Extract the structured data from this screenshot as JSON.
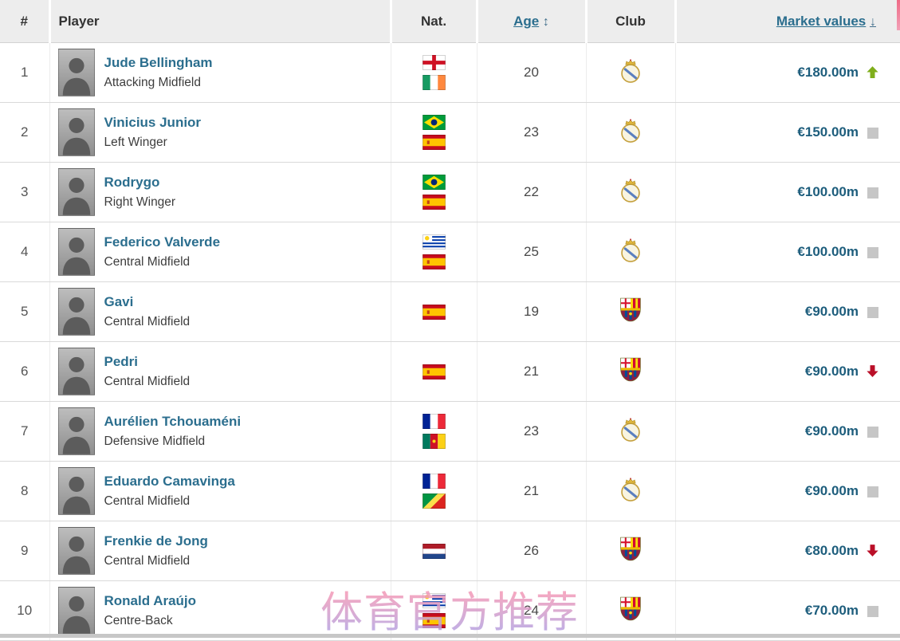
{
  "header": {
    "rank": "#",
    "player": "Player",
    "nationality": "Nat.",
    "age": "Age",
    "age_sort": "↕",
    "club": "Club",
    "market_values": "Market values",
    "market_sort": "↓"
  },
  "rows": [
    {
      "rank": "1",
      "name": "Jude Bellingham",
      "position": "Attacking Midfield",
      "nationalities": [
        "England",
        "Ireland"
      ],
      "age": "20",
      "club": "Real Madrid",
      "value": "€180.00m",
      "trend": "up"
    },
    {
      "rank": "2",
      "name": "Vinicius Junior",
      "position": "Left Winger",
      "nationalities": [
        "Brazil",
        "Spain"
      ],
      "age": "23",
      "club": "Real Madrid",
      "value": "€150.00m",
      "trend": "flat"
    },
    {
      "rank": "3",
      "name": "Rodrygo",
      "position": "Right Winger",
      "nationalities": [
        "Brazil",
        "Spain"
      ],
      "age": "22",
      "club": "Real Madrid",
      "value": "€100.00m",
      "trend": "flat"
    },
    {
      "rank": "4",
      "name": "Federico Valverde",
      "position": "Central Midfield",
      "nationalities": [
        "Uruguay",
        "Spain"
      ],
      "age": "25",
      "club": "Real Madrid",
      "value": "€100.00m",
      "trend": "flat"
    },
    {
      "rank": "5",
      "name": "Gavi",
      "position": "Central Midfield",
      "nationalities": [
        "Spain"
      ],
      "age": "19",
      "club": "FC Barcelona",
      "value": "€90.00m",
      "trend": "flat"
    },
    {
      "rank": "6",
      "name": "Pedri",
      "position": "Central Midfield",
      "nationalities": [
        "Spain"
      ],
      "age": "21",
      "club": "FC Barcelona",
      "value": "€90.00m",
      "trend": "down"
    },
    {
      "rank": "7",
      "name": "Aurélien Tchouaméni",
      "position": "Defensive Midfield",
      "nationalities": [
        "France",
        "Cameroon"
      ],
      "age": "23",
      "club": "Real Madrid",
      "value": "€90.00m",
      "trend": "flat"
    },
    {
      "rank": "8",
      "name": "Eduardo Camavinga",
      "position": "Central Midfield",
      "nationalities": [
        "France",
        "Congo"
      ],
      "age": "21",
      "club": "Real Madrid",
      "value": "€90.00m",
      "trend": "flat"
    },
    {
      "rank": "9",
      "name": "Frenkie de Jong",
      "position": "Central Midfield",
      "nationalities": [
        "Netherlands"
      ],
      "age": "26",
      "club": "FC Barcelona",
      "value": "€80.00m",
      "trend": "down"
    },
    {
      "rank": "10",
      "name": "Ronald Araújo",
      "position": "Centre-Back",
      "nationalities": [
        "Uruguay",
        "Spain"
      ],
      "age": "24",
      "club": "FC Barcelona",
      "value": "€70.00m",
      "trend": "flat"
    }
  ],
  "watermark": "体育官方推荐",
  "colors": {
    "link": "#2b6e8e",
    "value": "#1d5d7c",
    "trend_up": "#7fae1b",
    "trend_down": "#ba0f28",
    "trend_flat": "#c6c6c6",
    "header_bg": "#ededed",
    "watermark_pink": "#f29ab8",
    "watermark_purple": "#b3a2e2"
  }
}
